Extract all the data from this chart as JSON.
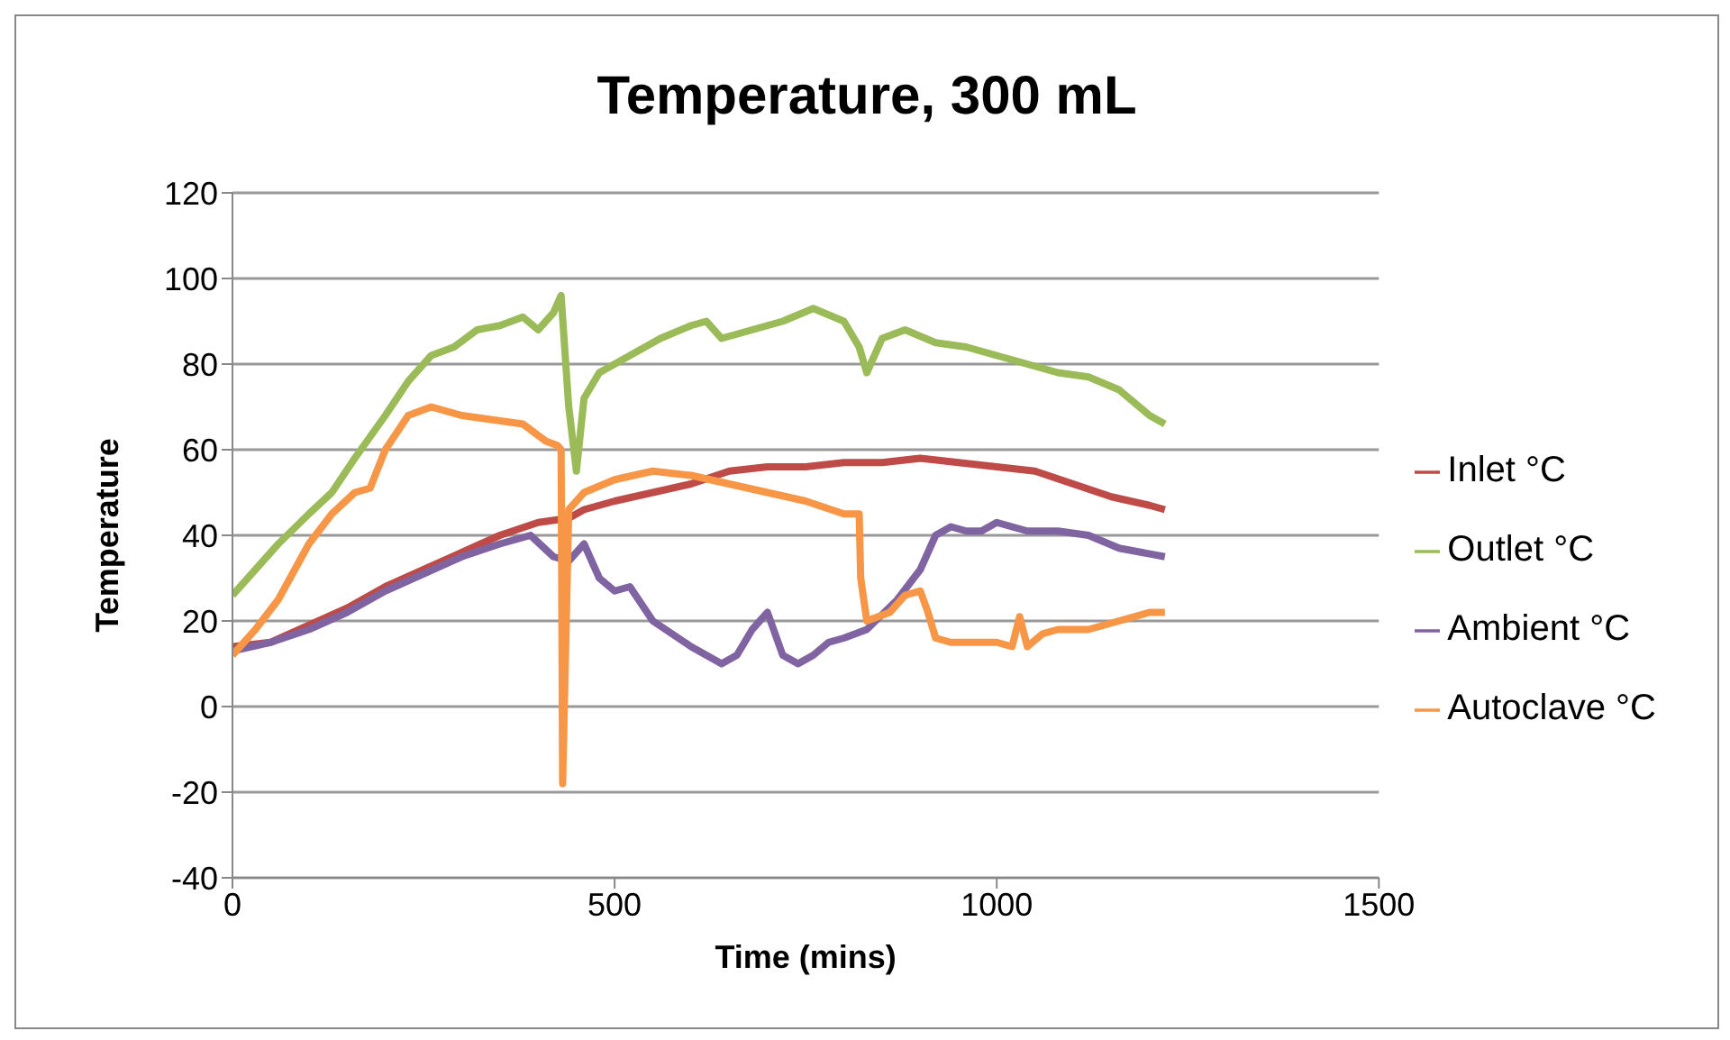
{
  "chart_data": {
    "type": "line",
    "title": "Temperature, 300 mL",
    "xlabel": "Time (mins)",
    "ylabel": "Temperature",
    "xlim": [
      0,
      1500
    ],
    "xticks": [
      0,
      500,
      1000,
      1500
    ],
    "ylim": [
      -40,
      120
    ],
    "yticks": [
      -40,
      -20,
      0,
      20,
      40,
      60,
      80,
      100,
      120
    ],
    "grid": "y",
    "legend": "right",
    "marker": "none",
    "line_style": "solid",
    "series": [
      {
        "name": "Inlet °C",
        "color": "#be4b48",
        "x": [
          0,
          50,
          100,
          150,
          200,
          250,
          300,
          350,
          400,
          440,
          460,
          500,
          550,
          600,
          650,
          700,
          750,
          800,
          850,
          900,
          950,
          1000,
          1050,
          1100,
          1150,
          1200,
          1220
        ],
        "values": [
          14,
          15,
          19,
          23,
          28,
          32,
          36,
          40,
          43,
          44,
          46,
          48,
          50,
          52,
          55,
          56,
          56,
          57,
          57,
          58,
          57,
          56,
          55,
          52,
          49,
          47,
          46
        ]
      },
      {
        "name": "Outlet °C",
        "color": "#9bbb59",
        "x": [
          0,
          30,
          60,
          100,
          130,
          160,
          200,
          230,
          260,
          290,
          320,
          350,
          380,
          400,
          420,
          430,
          440,
          450,
          460,
          480,
          520,
          560,
          600,
          620,
          640,
          680,
          720,
          760,
          800,
          820,
          830,
          850,
          880,
          920,
          960,
          1000,
          1040,
          1080,
          1120,
          1160,
          1200,
          1220
        ],
        "values": [
          26,
          32,
          38,
          45,
          50,
          58,
          68,
          76,
          82,
          84,
          88,
          89,
          91,
          88,
          92,
          96,
          70,
          55,
          72,
          78,
          82,
          86,
          89,
          90,
          86,
          88,
          90,
          93,
          90,
          84,
          78,
          86,
          88,
          85,
          84,
          82,
          80,
          78,
          77,
          74,
          68,
          66
        ]
      },
      {
        "name": "Ambient °C",
        "color": "#8064a2",
        "x": [
          0,
          50,
          100,
          150,
          200,
          250,
          300,
          350,
          390,
          420,
          440,
          460,
          480,
          500,
          520,
          550,
          600,
          640,
          660,
          680,
          700,
          720,
          740,
          760,
          780,
          800,
          830,
          870,
          900,
          920,
          940,
          960,
          980,
          1000,
          1040,
          1080,
          1120,
          1160,
          1220
        ],
        "values": [
          13,
          15,
          18,
          22,
          27,
          31,
          35,
          38,
          40,
          35,
          34,
          38,
          30,
          27,
          28,
          20,
          14,
          10,
          12,
          18,
          22,
          12,
          10,
          12,
          15,
          16,
          18,
          25,
          32,
          40,
          42,
          41,
          41,
          43,
          41,
          41,
          40,
          37,
          35
        ]
      },
      {
        "name": "Autoclave °C",
        "color": "#f79646",
        "x": [
          0,
          30,
          60,
          100,
          130,
          160,
          180,
          200,
          230,
          260,
          300,
          340,
          380,
          410,
          425,
          430,
          432,
          440,
          460,
          500,
          550,
          600,
          650,
          700,
          750,
          800,
          820,
          822,
          830,
          860,
          880,
          900,
          910,
          920,
          940,
          980,
          1000,
          1020,
          1030,
          1040,
          1060,
          1080,
          1120,
          1160,
          1200,
          1220
        ],
        "values": [
          12,
          18,
          25,
          38,
          45,
          50,
          51,
          60,
          68,
          70,
          68,
          67,
          66,
          62,
          61,
          60,
          -18,
          46,
          50,
          53,
          55,
          54,
          52,
          50,
          48,
          45,
          45,
          30,
          20,
          22,
          26,
          27,
          22,
          16,
          15,
          15,
          15,
          14,
          21,
          14,
          17,
          18,
          18,
          20,
          22,
          22
        ]
      }
    ]
  }
}
